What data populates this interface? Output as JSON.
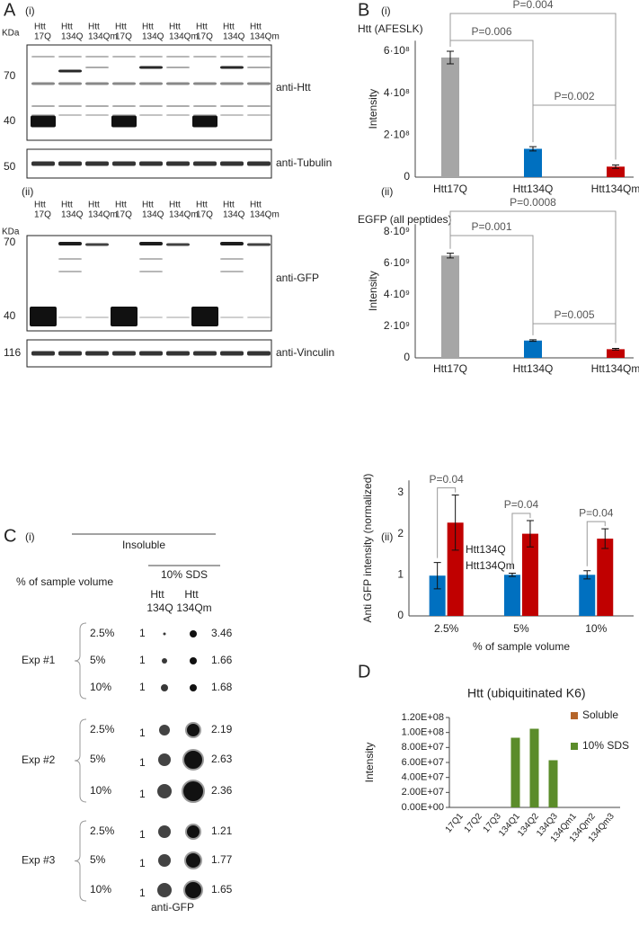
{
  "figure_labels": {
    "A": "A",
    "A_i": "(i)",
    "A_ii": "(ii)",
    "B": "B",
    "B_i": "(i)",
    "B_ii": "(ii)",
    "C": "C",
    "C_i": "(i)",
    "C_ii": "(ii)",
    "D": "D"
  },
  "western_blots": [
    {
      "kda": "KDa",
      "lanes": [
        [
          "Htt",
          "17Q"
        ],
        [
          "Htt",
          "134Q"
        ],
        [
          "Htt",
          "134Qm"
        ],
        [
          "Htt",
          "17Q"
        ],
        [
          "Htt",
          "134Q"
        ],
        [
          "Htt",
          "134Qm"
        ],
        [
          "Htt",
          "17Q"
        ],
        [
          "Htt",
          "134Q"
        ],
        [
          "Htt",
          "134Qm"
        ]
      ],
      "blots": [
        {
          "markers": [
            70,
            40
          ],
          "antibody": "anti-Htt"
        },
        {
          "markers": [
            50
          ],
          "antibody": "anti-Tubulin"
        }
      ]
    },
    {
      "kda": "KDa",
      "lanes": [
        [
          "Htt",
          "17Q"
        ],
        [
          "Htt",
          "134Q"
        ],
        [
          "Htt",
          "134Qm"
        ],
        [
          "Htt",
          "17Q"
        ],
        [
          "Htt",
          "134Q"
        ],
        [
          "Htt",
          "134Qm"
        ],
        [
          "Htt",
          "17Q"
        ],
        [
          "Htt",
          "134Q"
        ],
        [
          "Htt",
          "134Qm"
        ]
      ],
      "blots": [
        {
          "markers": [
            70,
            40
          ],
          "antibody": "anti-GFP"
        },
        {
          "markers": [
            116
          ],
          "antibody": "anti-Vinculin"
        }
      ]
    }
  ],
  "dot_blot": {
    "header": "Insoluble",
    "row_label": "% of sample volume",
    "condition": "10% SDS",
    "columns": [
      [
        "Htt",
        "134Q"
      ],
      [
        "Htt",
        "134Qm"
      ]
    ],
    "experiments": [
      {
        "name": "Exp #1",
        "rows": [
          {
            "volume": "2.5%",
            "ref": 1,
            "ratio": 3.46
          },
          {
            "volume": "5%",
            "ref": 1,
            "ratio": 1.66
          },
          {
            "volume": "10%",
            "ref": 1,
            "ratio": 1.68
          }
        ]
      },
      {
        "name": "Exp #2",
        "rows": [
          {
            "volume": "2.5%",
            "ref": 1,
            "ratio": 2.19
          },
          {
            "volume": "5%",
            "ref": 1,
            "ratio": 2.63
          },
          {
            "volume": "10%",
            "ref": 1,
            "ratio": 2.36
          }
        ]
      },
      {
        "name": "Exp #3",
        "rows": [
          {
            "volume": "2.5%",
            "ref": 1,
            "ratio": 1.21
          },
          {
            "volume": "5%",
            "ref": 1,
            "ratio": 1.77
          },
          {
            "volume": "10%",
            "ref": 1,
            "ratio": 1.65
          }
        ]
      }
    ],
    "antibody": "anti-GFP"
  },
  "chart_data": [
    {
      "type": "bar",
      "title": "Htt (AFESLK)",
      "y_label": "Intensity",
      "categories": [
        "Htt17Q",
        "Htt134Q",
        "Htt134Qm"
      ],
      "values": [
        570000000,
        135000000,
        50000000
      ],
      "errors": [
        30000000,
        10000000,
        8000000
      ],
      "colors": [
        "#a6a6a6",
        "#0070c0",
        "#c00000"
      ],
      "ylim": [
        0,
        650000000
      ],
      "yticks": [
        0,
        {
          "value": 200000000,
          "label": "2·10⁸"
        },
        {
          "value": 400000000,
          "label": "4·10⁸"
        },
        {
          "value": 600000000,
          "label": "6·10⁸"
        }
      ],
      "annotations": [
        "P=0.006",
        "P=0.004",
        "P=0.002"
      ]
    },
    {
      "type": "bar",
      "title": "EGFP (all peptides)",
      "y_label": "Intensity",
      "categories": [
        "Htt17Q",
        "Htt134Q",
        "Htt134Qm"
      ],
      "values": [
        6500000000,
        1100000000,
        550000000
      ],
      "errors": [
        150000000,
        50000000,
        50000000
      ],
      "colors": [
        "#a6a6a6",
        "#0070c0",
        "#c00000"
      ],
      "ylim": [
        0,
        8500000000
      ],
      "yticks": [
        0,
        {
          "value": 2000000000,
          "label": "2·10⁹"
        },
        {
          "value": 4000000000,
          "label": "4·10⁹"
        },
        {
          "value": 6000000000,
          "label": "6·10⁹"
        },
        {
          "value": 8000000000,
          "label": "8·10⁹"
        }
      ],
      "annotations": [
        "P=0.001",
        "P=0.0008",
        "P=0.005"
      ]
    },
    {
      "type": "bar",
      "y_label": "Anti GFP intensity (normalized)",
      "x_label": "% of sample volume",
      "categories": [
        "2.5%",
        "5%",
        "10%"
      ],
      "series": [
        {
          "name": "Htt134Q",
          "color": "#0070c0",
          "values": [
            0.98,
            1.0,
            1.0
          ],
          "errors": [
            0.32,
            0.04,
            0.1
          ]
        },
        {
          "name": "Htt134Qm",
          "color": "#c00000",
          "values": [
            2.27,
            2.0,
            1.88
          ],
          "errors": [
            0.67,
            0.32,
            0.24
          ]
        }
      ],
      "ylim": [
        0,
        3.3
      ],
      "yticks": [
        0,
        1,
        2,
        3
      ],
      "annotations": [
        "P=0.04",
        "P=0.04",
        "P=0.04"
      ]
    },
    {
      "type": "bar",
      "title": "Htt (ubiquitinated K6)",
      "y_label": "Intensity",
      "categories": [
        "17Q1",
        "17Q2",
        "17Q3",
        "134Q1",
        "134Q2",
        "134Q3",
        "134Qm1",
        "134Qm2",
        "134Qm3"
      ],
      "series": [
        {
          "name": "Soluble",
          "color": "#b5652a",
          "values": [
            0,
            0,
            0,
            0,
            0,
            0,
            0,
            0,
            0
          ]
        },
        {
          "name": "10% SDS",
          "color": "#5b8c2a",
          "values": [
            0,
            0,
            0,
            93000000,
            105000000,
            63000000,
            0,
            0,
            0
          ]
        }
      ],
      "ylim": [
        0,
        120000000
      ],
      "yticks": [
        {
          "value": 0,
          "label": "0.00E+00"
        },
        {
          "value": 20000000,
          "label": "2.00E+07"
        },
        {
          "value": 40000000,
          "label": "4.00E+07"
        },
        {
          "value": 60000000,
          "label": "6.00E+07"
        },
        {
          "value": 80000000,
          "label": "8.00E+07"
        },
        {
          "value": 100000000,
          "label": "1.00E+08"
        },
        {
          "value": 120000000,
          "label": "1.20E+08"
        }
      ]
    }
  ]
}
